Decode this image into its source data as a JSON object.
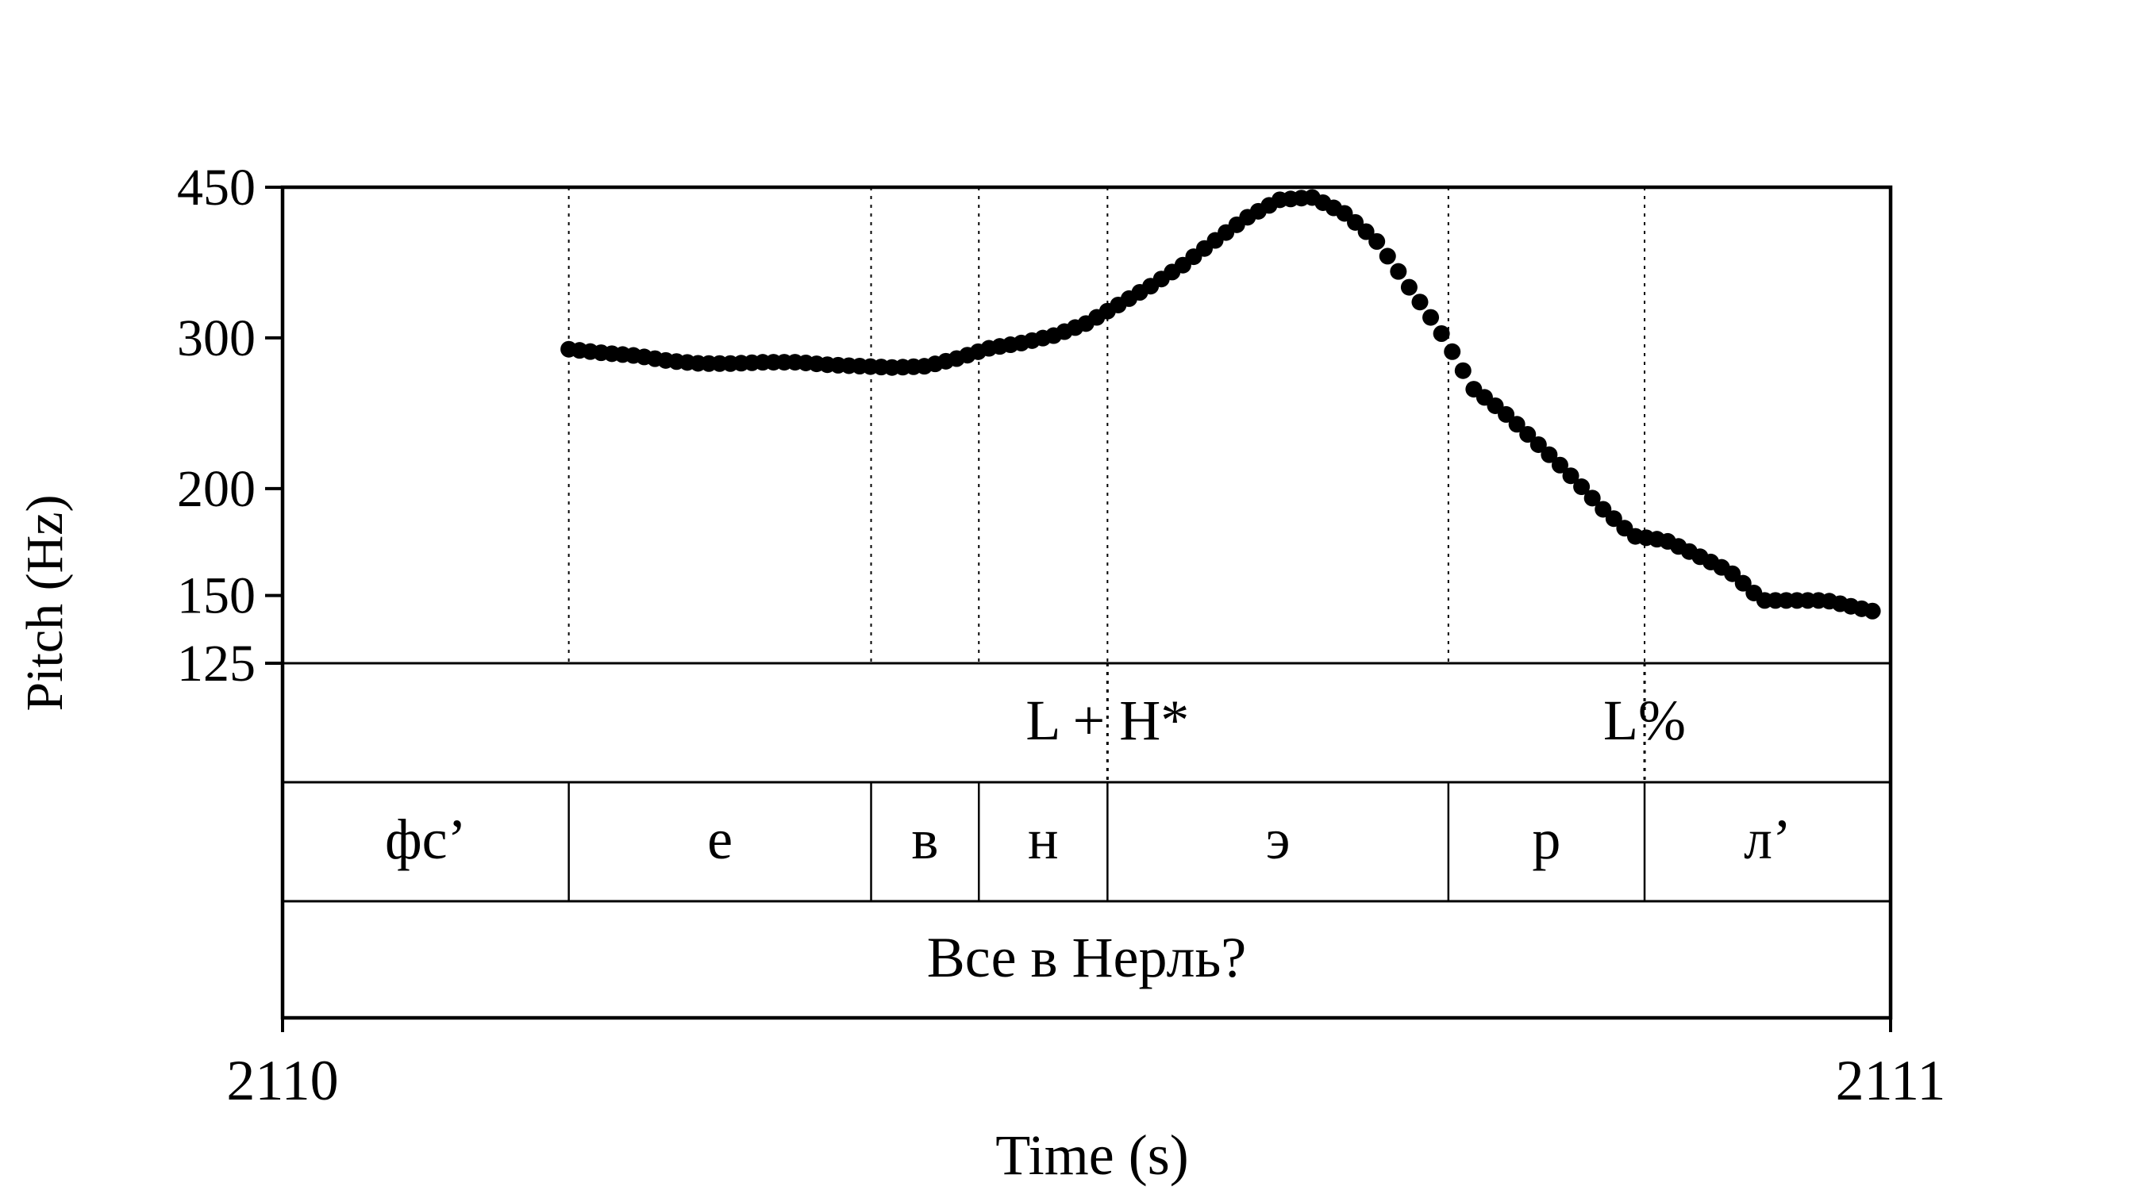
{
  "chart_data": {
    "type": "scatter",
    "xlabel": "Time (s)",
    "ylabel": "Pitch (Hz)",
    "xlim": [
      2110,
      2111
    ],
    "ylim": [
      125,
      450
    ],
    "y_scale": "log",
    "x_tick_labels": [
      "2110",
      "2111"
    ],
    "y_ticks": [
      450,
      300,
      200,
      150,
      125
    ],
    "y_tick_labels": [
      "450",
      "300",
      "200",
      "150",
      "125"
    ],
    "grid": false,
    "boundaries": [
      2110.178,
      2110.366,
      2110.433,
      2110.513,
      2110.725,
      2110.847
    ],
    "tiers": {
      "tones": [
        {
          "label": "L + H*",
          "time": 2110.513
        },
        {
          "label": "L%",
          "time": 2110.847
        }
      ],
      "segments": [
        {
          "label": "фс’",
          "start": 2110.0,
          "end": 2110.178
        },
        {
          "label": "е",
          "start": 2110.178,
          "end": 2110.366
        },
        {
          "label": "в",
          "start": 2110.366,
          "end": 2110.433
        },
        {
          "label": "н",
          "start": 2110.433,
          "end": 2110.513
        },
        {
          "label": "э",
          "start": 2110.513,
          "end": 2110.725
        },
        {
          "label": "р",
          "start": 2110.725,
          "end": 2110.847
        },
        {
          "label": "л’",
          "start": 2110.847,
          "end": 2111.0
        }
      ],
      "sentence": "Все в Нерль?"
    },
    "pitch_anchors": [
      [
        2110.178,
        291
      ],
      [
        2110.2,
        288
      ],
      [
        2110.22,
        286
      ],
      [
        2110.24,
        282
      ],
      [
        2110.26,
        280
      ],
      [
        2110.28,
        280
      ],
      [
        2110.3,
        281
      ],
      [
        2110.32,
        281
      ],
      [
        2110.34,
        279
      ],
      [
        2110.36,
        278
      ],
      [
        2110.38,
        277
      ],
      [
        2110.4,
        278
      ],
      [
        2110.42,
        284
      ],
      [
        2110.44,
        292
      ],
      [
        2110.46,
        296
      ],
      [
        2110.48,
        302
      ],
      [
        2110.5,
        312
      ],
      [
        2110.52,
        328
      ],
      [
        2110.54,
        345
      ],
      [
        2110.56,
        365
      ],
      [
        2110.58,
        390
      ],
      [
        2110.6,
        415
      ],
      [
        2110.62,
        435
      ],
      [
        2110.64,
        438
      ],
      [
        2110.66,
        420
      ],
      [
        2110.68,
        390
      ],
      [
        2110.7,
        345
      ],
      [
        2110.72,
        305
      ],
      [
        2110.74,
        262
      ],
      [
        2110.76,
        245
      ],
      [
        2110.78,
        226
      ],
      [
        2110.8,
        208
      ],
      [
        2110.82,
        190
      ],
      [
        2110.84,
        176
      ],
      [
        2110.86,
        174
      ],
      [
        2110.88,
        167
      ],
      [
        2110.9,
        160
      ],
      [
        2110.92,
        148
      ],
      [
        2110.94,
        148
      ],
      [
        2110.96,
        148
      ],
      [
        2110.98,
        145
      ],
      [
        2110.995,
        143
      ]
    ],
    "point_step": 0.0067,
    "point_color": "#000000"
  }
}
